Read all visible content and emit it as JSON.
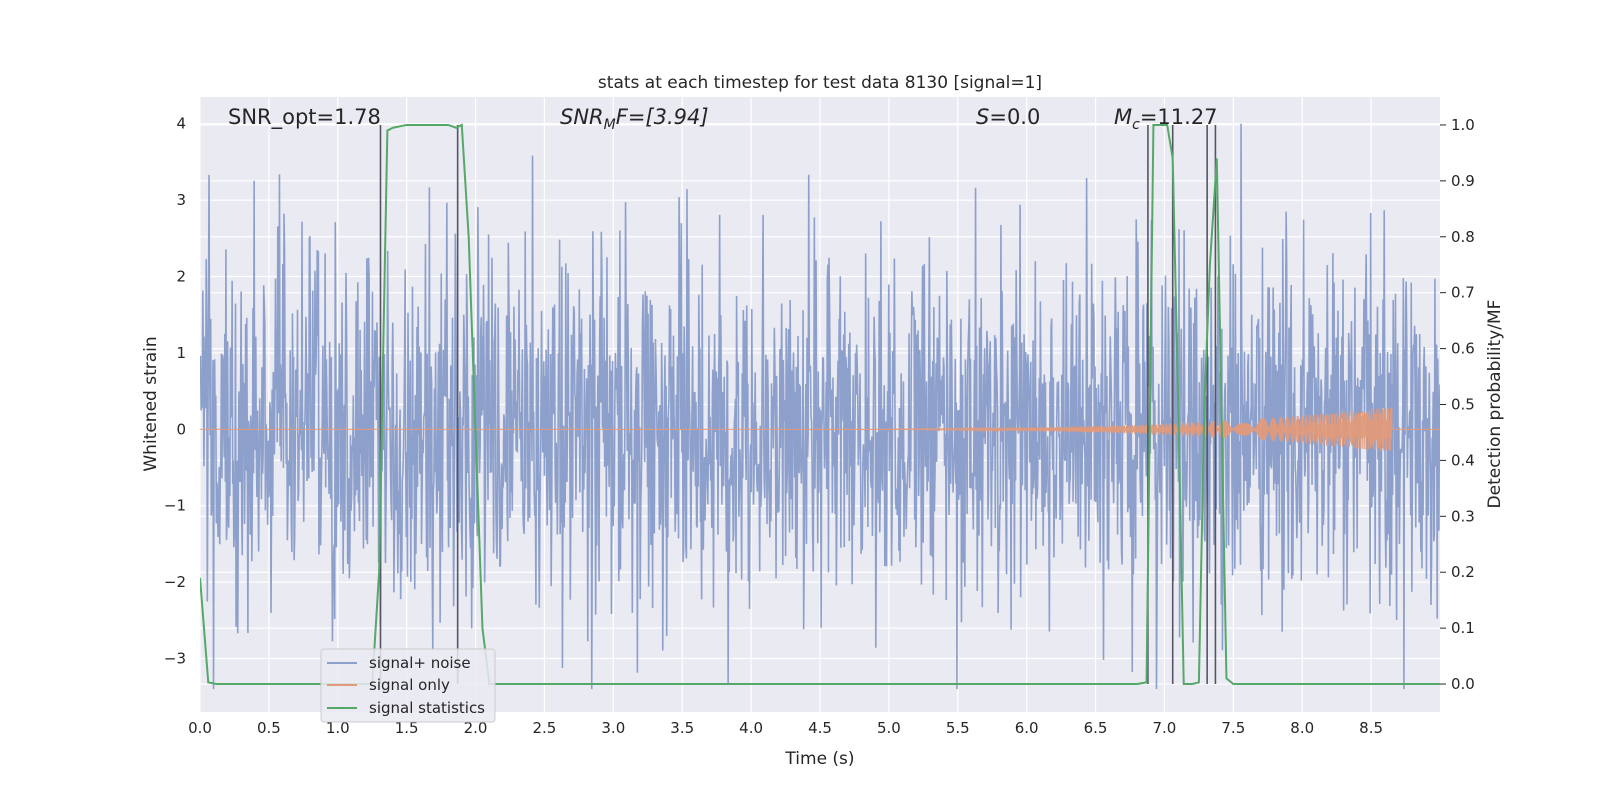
{
  "chart_data": {
    "type": "line",
    "title": "stats at each timestep for test data 8130 [signal=1]",
    "xlabel": "Time (s)",
    "ylabel_left": "Whitened strain",
    "ylabel_right": "Detection probability/MF",
    "xlim": [
      0,
      9.0
    ],
    "ylim_left": [
      -3.7,
      4.35
    ],
    "ylim_right": [
      -0.05,
      1.05
    ],
    "x_ticks": [
      "0.0",
      "0.5",
      "1.0",
      "1.5",
      "2.0",
      "2.5",
      "3.0",
      "3.5",
      "4.0",
      "4.5",
      "5.0",
      "5.5",
      "6.0",
      "6.5",
      "7.0",
      "7.5",
      "8.0",
      "8.5"
    ],
    "y_ticks_left": [
      "4",
      "3",
      "2",
      "1",
      "0",
      "−1",
      "−2",
      "−3"
    ],
    "y_ticks_right": [
      "1.0",
      "0.9",
      "0.8",
      "0.7",
      "0.6",
      "0.5",
      "0.4",
      "0.3",
      "0.2",
      "0.1",
      "0.0"
    ],
    "grid": true,
    "legend_position": "bottom-left",
    "annotations": {
      "snr_opt": "SNR_opt=1.78",
      "snr_mf_main": "SNR",
      "snr_mf_sub": "M",
      "snr_mf_tail": "F=[3.94]",
      "s_main": "S",
      "s_tail": "=0.0",
      "mc_main": "M",
      "mc_sub": "c",
      "mc_tail": "=11.27"
    },
    "series": [
      {
        "name": "signal+ noise",
        "color": "#8da0cb",
        "description_stat": "whitened noisy strain, approx. Gaussian with envelope ±2.5, peaks to ±4"
      },
      {
        "name": "signal only",
        "color": "#e29a7a",
        "chirp": {
          "start": 4.0,
          "end": 8.65,
          "peak_amplitude": 0.3
        }
      },
      {
        "name": "signal statistics",
        "color": "#55a868",
        "x": [
          0.0,
          0.06,
          0.12,
          0.5,
          1.0,
          1.25,
          1.3,
          1.33,
          1.36,
          1.4,
          1.5,
          1.6,
          1.8,
          1.86,
          1.9,
          1.95,
          2.0,
          2.05,
          2.1,
          2.5,
          3.0,
          4.0,
          5.0,
          6.0,
          6.5,
          6.8,
          6.87,
          6.92,
          6.97,
          7.02,
          7.06,
          7.1,
          7.14,
          7.2,
          7.25,
          7.29,
          7.33,
          7.38,
          7.45,
          7.5,
          8.0,
          8.5,
          9.0
        ],
        "y": [
          0.19,
          0.003,
          0.0,
          0.0,
          0.0,
          0.0,
          0.2,
          0.6,
          0.99,
          0.995,
          1.0,
          1.0,
          1.0,
          0.995,
          1.0,
          0.8,
          0.45,
          0.1,
          0.0,
          0.0,
          0.0,
          0.0,
          0.0,
          0.0,
          0.0,
          0.0,
          0.003,
          1.0,
          1.0,
          1.0,
          0.94,
          0.5,
          0.0,
          0.0,
          0.003,
          0.5,
          0.75,
          0.94,
          0.01,
          0.0,
          0.0,
          0.0,
          0.0
        ]
      }
    ],
    "vertical_markers_x": [
      1.31,
      1.87,
      6.88,
      7.06,
      7.31,
      7.37
    ]
  }
}
